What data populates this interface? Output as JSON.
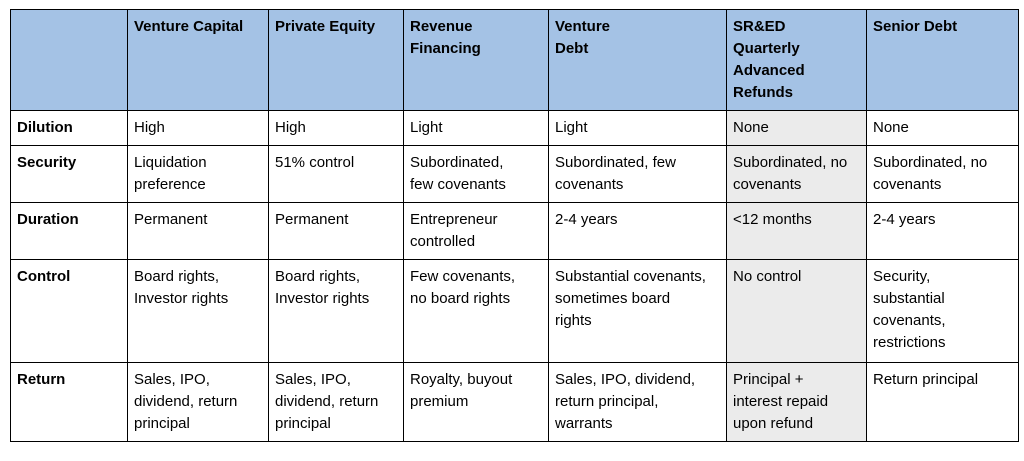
{
  "table": {
    "columns": [
      "",
      "Venture Capital",
      "Private Equity",
      "Revenue\nFinancing",
      "Venture\nDebt",
      "SR&ED\nQuarterly\nAdvanced\nRefunds",
      "Senior Debt"
    ],
    "rows": [
      {
        "label": "Dilution",
        "cells": [
          "High",
          "High",
          "Light",
          "Light",
          "None",
          "None"
        ]
      },
      {
        "label": "Security",
        "cells": [
          "Liquidation\npreference",
          "51% control",
          "Subordinated,\nfew covenants",
          "Subordinated, few\ncovenants",
          "Subordinated, no\ncovenants",
          "Subordinated, no\ncovenants"
        ]
      },
      {
        "label": "Duration",
        "cells": [
          "Permanent",
          "Permanent",
          "Entrepreneur\ncontrolled",
          "2-4 years",
          "<12 months",
          "2-4 years"
        ]
      },
      {
        "label": "Control",
        "cells": [
          "Board rights,\nInvestor rights",
          "Board rights,\nInvestor rights",
          "Few covenants,\nno board rights",
          "Substantial covenants,\nsometimes board\nrights",
          "No control",
          "Security,\nsubstantial\ncovenants,\nrestrictions"
        ]
      },
      {
        "label": "Return",
        "cells": [
          "Sales, IPO,\ndividend, return\nprincipal",
          "Sales, IPO,\ndividend, return\nprincipal",
          "Royalty, buyout\npremium",
          "Sales, IPO, dividend,\nreturn principal,\nwarrants",
          "Principal +\ninterest repaid\nupon refund",
          "Return principal"
        ]
      }
    ],
    "colors": {
      "header_bg": "#a4c2e5",
      "highlight_column_bg": "#ebebeb",
      "border": "#000000"
    }
  }
}
